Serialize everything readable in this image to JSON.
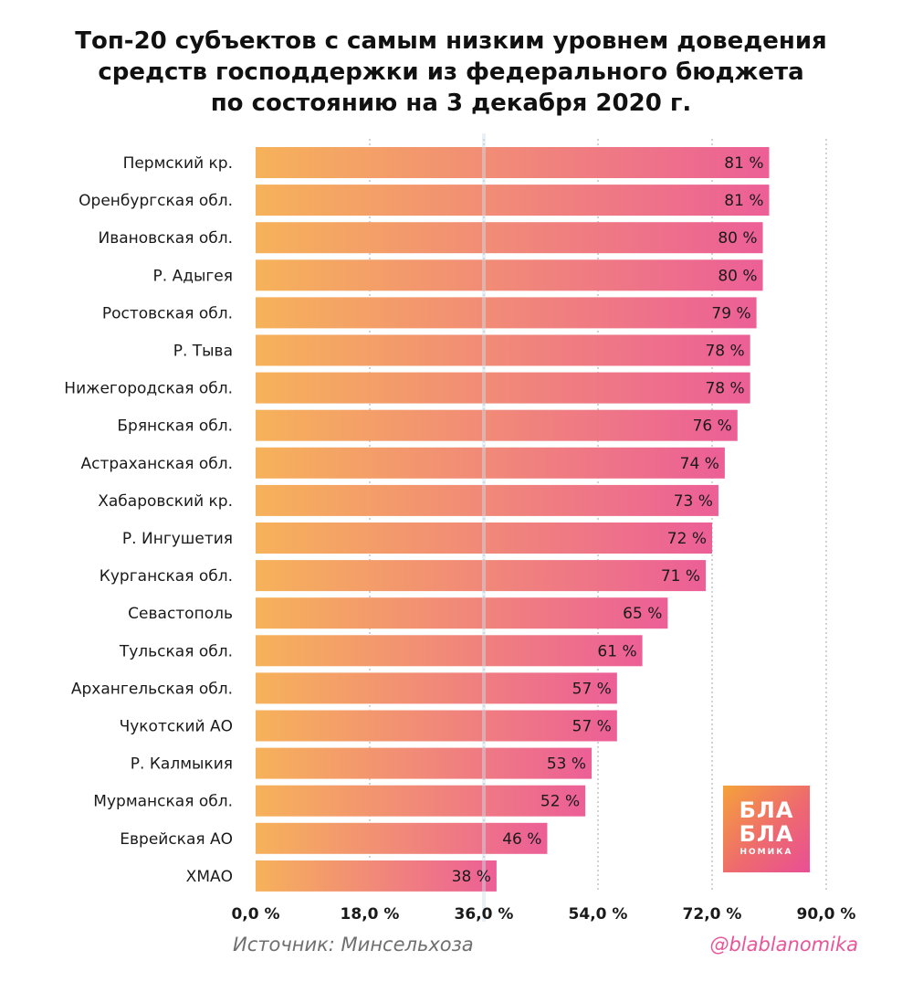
{
  "title": {
    "line1": "Топ-20 субъектов с самым низким уровнем доведения",
    "line2": "средств господдержки из федерального бюджета",
    "line3": "по состоянию на 3 декабря 2020 г."
  },
  "chart_data": {
    "type": "bar",
    "orientation": "horizontal",
    "title": "Топ-20 субъектов с самым низким уровнем доведения средств господдержки из федерального бюджета по состоянию на 3 декабря 2020 г.",
    "categories": [
      "Пермский кр.",
      "Оренбургская обл.",
      "Ивановская обл.",
      "Р. Адыгея",
      "Ростовская обл.",
      "Р. Тыва",
      "Нижегородская обл.",
      "Брянская обл.",
      "Астраханская обл.",
      "Хабаровский кр.",
      "Р. Ингушетия",
      "Курганская обл.",
      "Севастополь",
      "Тульская обл.",
      "Архангельская обл.",
      "Чукотский АО",
      "Р. Калмыкия",
      "Мурманская обл.",
      "Еврейская АО",
      "ХМАО"
    ],
    "values": [
      81,
      81,
      80,
      80,
      79,
      78,
      78,
      76,
      74,
      73,
      72,
      71,
      65,
      61,
      57,
      57,
      53,
      52,
      46,
      38
    ],
    "value_labels": [
      "81 %",
      "81 %",
      "80 %",
      "80 %",
      "79 %",
      "78 %",
      "78 %",
      "76 %",
      "74 %",
      "73 %",
      "72 %",
      "71 %",
      "65 %",
      "61 %",
      "57 %",
      "57 %",
      "53 %",
      "52 %",
      "46 %",
      "38 %"
    ],
    "xlim": [
      0,
      90
    ],
    "xticks": [
      0,
      18,
      36,
      54,
      72,
      90
    ],
    "xtick_labels": [
      "0,0 %",
      "18,0 %",
      "36,0 %",
      "54,0 %",
      "72,0 %",
      "90,0 %"
    ],
    "grid": "vertical dotted",
    "xlabel": "",
    "ylabel": ""
  },
  "colors": {
    "bar_start": "#f6b25a",
    "bar_end": "#ec5f97",
    "text": "#1a1a1a",
    "grid": "#b5b5b5",
    "source": "#6f6f6f",
    "handle": "#e8569a"
  },
  "footer": {
    "source": "Источник: Минсельхоза",
    "handle": "@blablanomika"
  },
  "logo": {
    "line1": "БЛА",
    "line2": "БЛА",
    "line3": "НОМИКА"
  }
}
